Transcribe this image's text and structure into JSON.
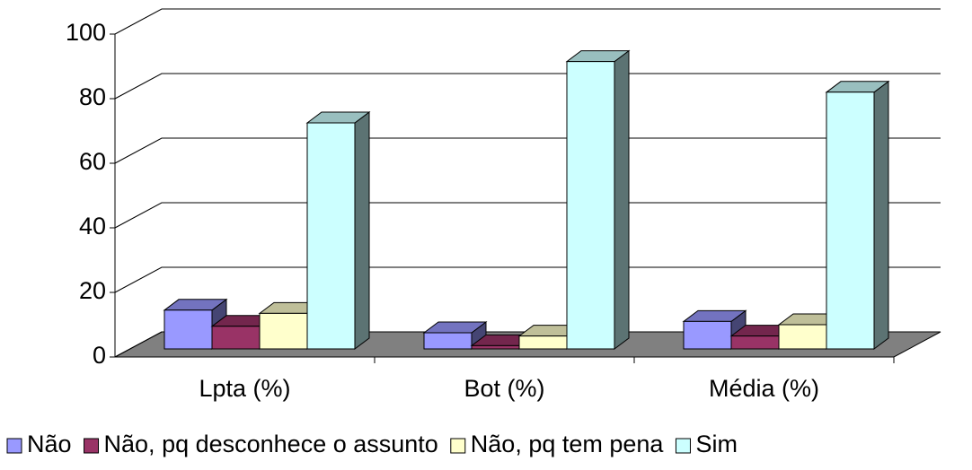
{
  "chart_data": {
    "type": "bar3d",
    "categories": [
      "Lpta (%)",
      "Bot (%)",
      "Média (%)"
    ],
    "series": [
      {
        "name": "Não",
        "color": "#9999ff",
        "values": [
          12,
          5,
          8.5
        ]
      },
      {
        "name": "Não, pq desconhece o assunto",
        "color": "#993366",
        "values": [
          7,
          1,
          4
        ]
      },
      {
        "name": "Não, pq tem pena",
        "color": "#ffffcc",
        "values": [
          11,
          4,
          7.5
        ]
      },
      {
        "name": "Sim",
        "color": "#ccffff",
        "values": [
          70,
          89,
          79.5
        ]
      }
    ],
    "ylim": [
      0,
      100
    ],
    "yticks": [
      0,
      20,
      40,
      60,
      80,
      100
    ],
    "grid": true,
    "legend": "bottom"
  }
}
